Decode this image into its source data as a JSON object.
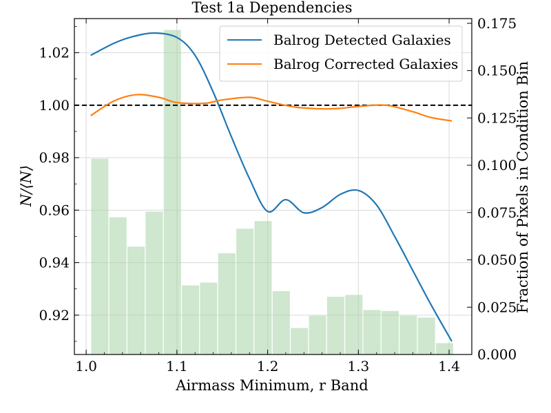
{
  "chart_data": {
    "type": "line",
    "title": "Test 1a Dependencies",
    "xlabel": "Airmass Minimum, r Band",
    "ylabel_left": "N/⟨N⟩",
    "ylabel_right": "Fraction of Pixels in Condition Bin",
    "xlim": [
      0.987,
      1.425
    ],
    "ylim_left": [
      0.905,
      1.033
    ],
    "ylim_right": [
      0.0,
      0.1775
    ],
    "x_ticks": [
      "1.0",
      "1.1",
      "1.2",
      "1.3",
      "1.4"
    ],
    "x_tick_values": [
      1.0,
      1.1,
      1.2,
      1.3,
      1.4
    ],
    "y_left_ticks": [
      "0.92",
      "0.94",
      "0.96",
      "0.98",
      "1.00",
      "1.02"
    ],
    "y_left_tick_values": [
      0.92,
      0.94,
      0.96,
      0.98,
      1.0,
      1.02
    ],
    "y_right_ticks": [
      "0.000",
      "0.025",
      "0.050",
      "0.075",
      "0.100",
      "0.125",
      "0.150",
      "0.175"
    ],
    "y_right_tick_values": [
      0.0,
      0.025,
      0.05,
      0.075,
      0.1,
      0.125,
      0.15,
      0.175
    ],
    "reference_line": 1.0,
    "grid": true,
    "legend_position": "top-right",
    "series": [
      {
        "name": "Balrog Detected Galaxies",
        "color": "#1f77b4",
        "x": [
          1.005,
          1.03,
          1.05,
          1.075,
          1.1,
          1.12,
          1.14,
          1.16,
          1.18,
          1.2,
          1.22,
          1.24,
          1.26,
          1.28,
          1.3,
          1.32,
          1.34,
          1.36,
          1.38,
          1.403
        ],
        "y": [
          1.019,
          1.0235,
          1.026,
          1.0275,
          1.0258,
          1.019,
          1.005,
          0.988,
          0.972,
          0.9595,
          0.964,
          0.959,
          0.961,
          0.966,
          0.9675,
          0.962,
          0.95,
          0.937,
          0.924,
          0.91
        ]
      },
      {
        "name": "Balrog Corrected Galaxies",
        "color": "#ff7f0e",
        "x": [
          1.005,
          1.03,
          1.055,
          1.08,
          1.1,
          1.13,
          1.15,
          1.18,
          1.2,
          1.23,
          1.26,
          1.28,
          1.3,
          1.33,
          1.36,
          1.38,
          1.403
        ],
        "y": [
          0.996,
          1.0015,
          1.004,
          1.003,
          1.001,
          1.0007,
          1.002,
          1.003,
          1.0015,
          0.9993,
          0.9986,
          0.9988,
          0.9995,
          1.0,
          0.9975,
          0.9953,
          0.994
        ]
      }
    ],
    "bars": {
      "color": "#a6d4a6",
      "width": 0.019,
      "x": [
        1.015,
        1.035,
        1.055,
        1.075,
        1.095,
        1.115,
        1.135,
        1.155,
        1.175,
        1.195,
        1.215,
        1.235,
        1.255,
        1.275,
        1.295,
        1.315,
        1.335,
        1.355,
        1.375,
        1.395
      ],
      "values": [
        0.1035,
        0.0725,
        0.057,
        0.0755,
        0.1715,
        0.0365,
        0.038,
        0.0535,
        0.0665,
        0.0705,
        0.0335,
        0.014,
        0.0205,
        0.0305,
        0.0315,
        0.0235,
        0.023,
        0.0205,
        0.0195,
        0.006
      ]
    }
  }
}
